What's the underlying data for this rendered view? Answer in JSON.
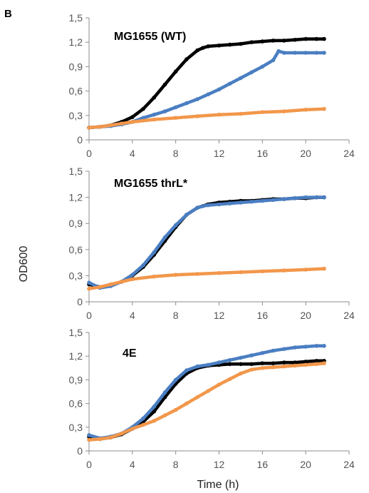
{
  "panel_label": "B",
  "ylabel": "OD600",
  "xlabel": "Time (h)",
  "colors": {
    "black": "#000000",
    "blue": "#4a7ec2",
    "orange": "#f2974b",
    "axis": "#8c8c8c"
  },
  "chart_data": [
    {
      "type": "scatter",
      "title": "MG1655 (WT)",
      "xlim": [
        0,
        24
      ],
      "ylim": [
        0,
        1.5
      ],
      "xticks": [
        "0",
        "4",
        "8",
        "12",
        "16",
        "20",
        "24"
      ],
      "yticks": [
        "0",
        "0,3",
        "0,6",
        "0,9",
        "1,2",
        "1,5"
      ],
      "series": [
        {
          "color": "#000000",
          "x": [
            0,
            1,
            2,
            3,
            4,
            5,
            6,
            7,
            8,
            9,
            10,
            10.5,
            11,
            12,
            13,
            14,
            15,
            16,
            17,
            18,
            19,
            20,
            21,
            21.7
          ],
          "y": [
            0.15,
            0.16,
            0.18,
            0.22,
            0.28,
            0.38,
            0.52,
            0.68,
            0.84,
            0.99,
            1.1,
            1.13,
            1.15,
            1.16,
            1.17,
            1.18,
            1.2,
            1.21,
            1.22,
            1.22,
            1.23,
            1.24,
            1.24,
            1.24
          ]
        },
        {
          "color": "#4a7ec2",
          "x": [
            0,
            1,
            2,
            3,
            4,
            5,
            6,
            7,
            8,
            9,
            10,
            11,
            12,
            13,
            14,
            15,
            16,
            17,
            17.5,
            18,
            19,
            20,
            21,
            21.7
          ],
          "y": [
            0.15,
            0.16,
            0.17,
            0.19,
            0.22,
            0.27,
            0.31,
            0.35,
            0.4,
            0.45,
            0.5,
            0.56,
            0.62,
            0.69,
            0.76,
            0.83,
            0.9,
            0.98,
            1.09,
            1.07,
            1.07,
            1.07,
            1.07,
            1.07
          ]
        },
        {
          "color": "#f2974b",
          "x": [
            0,
            1,
            2,
            3,
            4,
            6,
            8,
            10,
            12,
            14,
            16,
            18,
            20,
            21.7
          ],
          "y": [
            0.15,
            0.16,
            0.18,
            0.2,
            0.22,
            0.25,
            0.27,
            0.29,
            0.31,
            0.32,
            0.34,
            0.35,
            0.37,
            0.38
          ]
        }
      ]
    },
    {
      "type": "scatter",
      "title": "MG1655 thrL*",
      "xlim": [
        0,
        24
      ],
      "ylim": [
        0,
        1.5
      ],
      "xticks": [
        "0",
        "4",
        "8",
        "12",
        "16",
        "20",
        "24"
      ],
      "yticks": [
        "0",
        "0,3",
        "0,6",
        "0,9",
        "1,2",
        "1,5"
      ],
      "series": [
        {
          "color": "#000000",
          "x": [
            0,
            1,
            2,
            3,
            4,
            5,
            6,
            7,
            8,
            9,
            10,
            10.5,
            11,
            12,
            13,
            14,
            15,
            16,
            17,
            18,
            19,
            20,
            21,
            21.7
          ],
          "y": [
            0.2,
            0.17,
            0.19,
            0.23,
            0.3,
            0.4,
            0.54,
            0.7,
            0.86,
            1.0,
            1.08,
            1.1,
            1.12,
            1.14,
            1.15,
            1.16,
            1.16,
            1.17,
            1.18,
            1.18,
            1.19,
            1.19,
            1.2,
            1.2
          ]
        },
        {
          "color": "#4a7ec2",
          "x": [
            0,
            1,
            2,
            3,
            4,
            5,
            6,
            7,
            8,
            9,
            10,
            10.5,
            11,
            12,
            13,
            14,
            15,
            16,
            17,
            18,
            19,
            20,
            21,
            21.7
          ],
          "y": [
            0.22,
            0.16,
            0.18,
            0.23,
            0.31,
            0.42,
            0.57,
            0.74,
            0.88,
            1.0,
            1.08,
            1.1,
            1.11,
            1.12,
            1.13,
            1.14,
            1.15,
            1.16,
            1.17,
            1.18,
            1.19,
            1.2,
            1.2,
            1.2
          ]
        },
        {
          "color": "#f2974b",
          "x": [
            0,
            1,
            2,
            3,
            4,
            6,
            8,
            10,
            12,
            14,
            16,
            18,
            20,
            21.7
          ],
          "y": [
            0.15,
            0.17,
            0.2,
            0.23,
            0.26,
            0.29,
            0.31,
            0.32,
            0.33,
            0.34,
            0.35,
            0.36,
            0.37,
            0.38
          ]
        }
      ]
    },
    {
      "type": "scatter",
      "title": "4E",
      "xlim": [
        0,
        24
      ],
      "ylim": [
        0,
        1.5
      ],
      "xticks": [
        "0",
        "4",
        "8",
        "12",
        "16",
        "20",
        "24"
      ],
      "yticks": [
        "0",
        "0,3",
        "0,6",
        "0,9",
        "1,2",
        "1,5"
      ],
      "series": [
        {
          "color": "#000000",
          "x": [
            0,
            1,
            2,
            3,
            4,
            5,
            6,
            7,
            8,
            9,
            10,
            11,
            12,
            13,
            14,
            15,
            16,
            17,
            18,
            19,
            20,
            21,
            21.7
          ],
          "y": [
            0.18,
            0.15,
            0.17,
            0.21,
            0.28,
            0.37,
            0.5,
            0.68,
            0.85,
            0.98,
            1.05,
            1.08,
            1.09,
            1.1,
            1.1,
            1.1,
            1.11,
            1.11,
            1.12,
            1.12,
            1.13,
            1.14,
            1.14
          ]
        },
        {
          "color": "#4a7ec2",
          "x": [
            0,
            1,
            2,
            3,
            4,
            5,
            6,
            7,
            8,
            9,
            10,
            11,
            12,
            13,
            14,
            15,
            16,
            17,
            18,
            19,
            20,
            21,
            21.7
          ],
          "y": [
            0.2,
            0.16,
            0.18,
            0.22,
            0.3,
            0.41,
            0.56,
            0.74,
            0.9,
            1.02,
            1.07,
            1.09,
            1.12,
            1.15,
            1.18,
            1.21,
            1.24,
            1.27,
            1.29,
            1.31,
            1.32,
            1.33,
            1.33
          ]
        },
        {
          "color": "#f2974b",
          "x": [
            0,
            1,
            2,
            3,
            4,
            5,
            6,
            7,
            8,
            9,
            10,
            11,
            12,
            13,
            14,
            15,
            16,
            17,
            18,
            19,
            20,
            21,
            21.7
          ],
          "y": [
            0.14,
            0.15,
            0.17,
            0.22,
            0.28,
            0.33,
            0.38,
            0.45,
            0.52,
            0.6,
            0.68,
            0.76,
            0.84,
            0.91,
            0.98,
            1.03,
            1.05,
            1.06,
            1.07,
            1.08,
            1.09,
            1.1,
            1.11
          ]
        }
      ]
    }
  ]
}
